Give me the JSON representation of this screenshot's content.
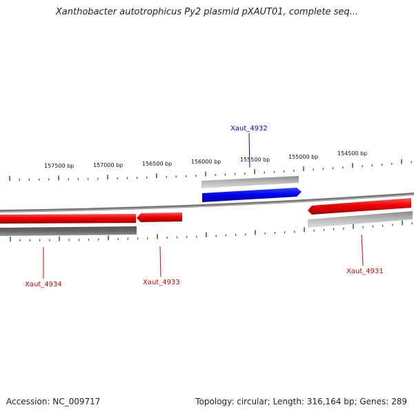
{
  "title": "Xanthobacter autotrophicus Py2 plasmid pXAUT01, complete seq...",
  "footer": {
    "accession": "Accession: NC_009717",
    "summary": "Topology: circular; Length: 316,164 bp; Genes: 289"
  },
  "ruler": {
    "labels": [
      "157500 bp",
      "157000 bp",
      "156500 bp",
      "156000 bp",
      "155500 bp",
      "155000 bp",
      "154500 bp"
    ],
    "tick_color": "#1a7a1a"
  },
  "genes": [
    {
      "name": "Xaut_4932",
      "color": "#0000cc"
    },
    {
      "name": "Xaut_4934",
      "color": "#cc0000"
    },
    {
      "name": "Xaut_4933",
      "color": "#cc0000"
    },
    {
      "name": "Xaut_4931",
      "color": "#cc0000"
    }
  ],
  "colors": {
    "forward_gene": "#0000ee",
    "reverse_gene": "#ee0000",
    "backbone": "#777777",
    "shadow_feature": "#bbbbbb"
  }
}
